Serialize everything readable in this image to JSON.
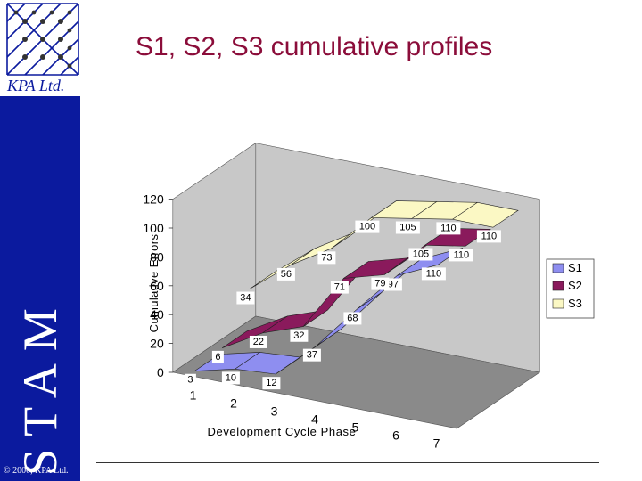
{
  "logo": {
    "text": "KPA Ltd."
  },
  "sidebar": {
    "brand": "STAM",
    "copyright": "© 2000, KPA Ltd."
  },
  "title": "S1, S2, S3 cumulative profiles",
  "colors": {
    "S1": "#8e8ef0",
    "S2": "#8a1a5c",
    "S3": "#fbf8c4",
    "sidebar": "#0b1a9e",
    "title": "#8b0d3a",
    "floor": "#8a8a8a",
    "wall": "#c8c8c8"
  },
  "chart_data": {
    "type": "area",
    "categories": [
      "1",
      "2",
      "3",
      "4",
      "5",
      "6",
      "7"
    ],
    "series": [
      {
        "name": "S1",
        "values": [
          3,
          10,
          12,
          37,
          68,
          97,
          110
        ]
      },
      {
        "name": "S2",
        "values": [
          6,
          22,
          32,
          71,
          79,
          105,
          110
        ]
      },
      {
        "name": "S3",
        "values": [
          34,
          56,
          73,
          100,
          105,
          110,
          110
        ]
      }
    ],
    "y_ticks": [
      "0",
      "20",
      "40",
      "60",
      "80",
      "100",
      "120"
    ],
    "ylim": [
      0,
      120
    ],
    "xlabel": "Development Cycle Phase",
    "ylabel": "Cumulative Errors",
    "legend": [
      "S1",
      "S2",
      "S3"
    ],
    "legend_position": "right",
    "projection": "3d"
  }
}
